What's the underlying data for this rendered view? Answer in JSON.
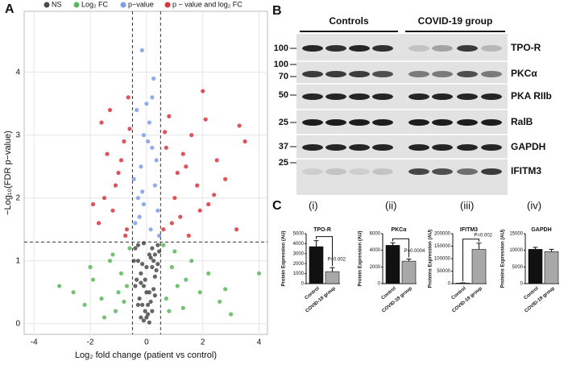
{
  "panel_labels": [
    "A",
    "B",
    "C"
  ],
  "blot": {
    "groups": [
      "Controls",
      "COVID-19 group"
    ],
    "rows": [
      {
        "markers": [
          "100"
        ],
        "protein": "TPO-R"
      },
      {
        "markers": [
          "100",
          "70"
        ],
        "protein": "PKCα"
      },
      {
        "markers": [
          "50"
        ],
        "protein": "PKA RIIb"
      },
      {
        "markers": [
          "25"
        ],
        "protein": "RalB"
      },
      {
        "markers": [
          "37"
        ],
        "protein": "GAPDH"
      },
      {
        "markers": [
          "25"
        ],
        "protein": "IFITM3"
      }
    ]
  },
  "chart_data": [
    {
      "type": "scatter",
      "x_label": "Log₂ fold change (patient vs control)",
      "y_label": "−Log₁₀(FDR p−value)",
      "xlim": [
        -4.35,
        4.3
      ],
      "ylim": [
        -0.17,
        4.97
      ],
      "xticks": [
        -4,
        -2,
        0,
        2,
        4
      ],
      "yticks": [
        0,
        1,
        2,
        3,
        4
      ],
      "grid": true,
      "vlines": [
        -0.5,
        0.5
      ],
      "hline": 1.3,
      "legend": "top",
      "series": [
        {
          "name": "NS",
          "color": "#4a4a4a",
          "x": [
            -0.4,
            -0.3,
            -0.2,
            -0.1,
            0,
            0.1,
            0.2,
            0.3,
            0.4,
            -0.35,
            -0.25,
            -0.15,
            -0.05,
            0.05,
            0.15,
            0.25,
            0.35,
            0.45,
            -0.45,
            -0.3,
            -0.2,
            -0.1,
            0.1,
            0.2,
            0.3,
            -0.4,
            -0.2,
            0,
            0.2,
            0.4,
            -0.1,
            0.1,
            -0.3,
            0.3,
            0,
            -0.15,
            0.15,
            -0.05,
            0.05,
            0.25
          ],
          "y": [
            1.2,
            1.0,
            0.8,
            0.6,
            0.1,
            0.5,
            0.9,
            1.1,
            1.25,
            0.7,
            0.4,
            0.3,
            0.2,
            0.15,
            0.35,
            0.55,
            0.85,
            1.15,
            1.0,
            0.3,
            0.1,
            0.05,
            0.02,
            0.2,
            0.45,
            0.6,
            0.65,
            0.9,
            1.2,
            0.95,
            1.28,
            1.1,
            1.25,
            0.75,
            0.5,
            0.95,
            1.05,
            0.7,
            0.3,
            1.0
          ]
        },
        {
          "name": "Log₂ FC",
          "color": "#5cb85c",
          "x": [
            -2.6,
            -2.2,
            -1.9,
            -1.6,
            -1.3,
            -1.1,
            -0.9,
            -0.7,
            -0.6,
            -1.5,
            -2.0,
            -1.0,
            -0.8,
            -3.1,
            -1.2,
            0.6,
            0.7,
            0.9,
            1.1,
            1.3,
            1.6,
            1.9,
            2.2,
            2.6,
            3.0,
            4.0,
            1.0,
            0.8,
            1.4,
            2.8
          ],
          "y": [
            0.5,
            0.3,
            0.7,
            0.4,
            1.0,
            0.2,
            0.8,
            0.6,
            1.2,
            0.1,
            0.9,
            0.5,
            0.35,
            0.6,
            1.1,
            1.25,
            0.4,
            0.9,
            0.6,
            0.25,
            1.0,
            0.5,
            0.8,
            0.35,
            0.15,
            0.8,
            1.15,
            0.2,
            0.7,
            0.55
          ]
        },
        {
          "name": "p−value",
          "color": "#7f9de8",
          "x": [
            -0.4,
            -0.3,
            -0.2,
            -0.1,
            0.0,
            0.1,
            0.2,
            0.3,
            0.4,
            -0.35,
            -0.15,
            0.15,
            0.35,
            -0.25,
            0.25,
            -0.16,
            0.45,
            -0.45,
            0.05,
            -0.1,
            0.2
          ],
          "y": [
            1.6,
            2.0,
            2.5,
            3.0,
            3.5,
            3.2,
            2.8,
            2.2,
            1.8,
            3.4,
            2.1,
            1.5,
            2.6,
            1.7,
            3.9,
            4.35,
            1.4,
            2.3,
            2.9,
            1.9,
            3.6
          ]
        },
        {
          "name": "p − value and log₂ FC",
          "color": "#d9363e",
          "x": [
            -1.7,
            -1.5,
            -1.2,
            -1.0,
            -0.8,
            -0.6,
            -0.7,
            -0.9,
            -1.3,
            -1.9,
            -1.1,
            -0.65,
            -1.4,
            -0.75,
            -1.6,
            0.6,
            0.7,
            0.8,
            1.0,
            1.2,
            1.4,
            1.6,
            1.8,
            2.0,
            2.2,
            2.5,
            2.8,
            3.2,
            3.5,
            1.1,
            0.9,
            1.5,
            2.1,
            2.4,
            1.3,
            0.65,
            3.3,
            1.9
          ],
          "y": [
            1.6,
            2.0,
            1.8,
            2.4,
            2.9,
            3.1,
            1.5,
            2.6,
            3.4,
            1.9,
            2.2,
            3.6,
            2.7,
            1.4,
            3.2,
            1.5,
            2.8,
            3.3,
            2.0,
            1.7,
            2.5,
            3.0,
            2.2,
            3.7,
            1.9,
            2.6,
            2.3,
            1.5,
            2.9,
            2.4,
            1.6,
            1.4,
            3.25,
            2.05,
            2.7,
            3.05,
            3.15,
            1.8
          ]
        }
      ]
    },
    {
      "type": "bar",
      "panel": "(i)",
      "title": "TPO-R",
      "y_label": "Protein Expression (AU)",
      "categories": [
        "Control",
        "COVID-19 group"
      ],
      "values": [
        3700,
        1200
      ],
      "errors": [
        600,
        400
      ],
      "colors": [
        "#111111",
        "#a8a8a8"
      ],
      "ylim": [
        0,
        5000
      ],
      "yticks": [
        0,
        1000,
        2000,
        3000,
        4000,
        5000
      ],
      "annotation": "P=0.002"
    },
    {
      "type": "bar",
      "panel": "(ii)",
      "title": "PKCα",
      "y_label": "Protein Expression (AU)",
      "categories": [
        "Control",
        "COVID-19 group"
      ],
      "values": [
        4600,
        2700
      ],
      "errors": [
        300,
        250
      ],
      "colors": [
        "#111111",
        "#a8a8a8"
      ],
      "ylim": [
        0,
        6000
      ],
      "yticks": [
        0,
        2000,
        4000,
        6000
      ],
      "annotation": "P=0.0004"
    },
    {
      "type": "bar",
      "panel": "(iii)",
      "title": "IFITM3",
      "y_label": "Proteins Expression (AU)",
      "categories": [
        "Control",
        "COVID-19 group"
      ],
      "values": [
        2000,
        137000
      ],
      "errors": [
        1000,
        25000
      ],
      "colors": [
        "#111111",
        "#a8a8a8"
      ],
      "ylim": [
        0,
        200000
      ],
      "yticks": [
        0,
        50000,
        100000,
        150000,
        200000
      ],
      "annotation": "P=0.002"
    },
    {
      "type": "bar",
      "panel": "(iv)",
      "title": "GAPDH",
      "y_label": "Proteins Expression (AU)",
      "categories": [
        "Control",
        "COVID-19 group"
      ],
      "values": [
        10300,
        9600
      ],
      "errors": [
        600,
        700
      ],
      "colors": [
        "#111111",
        "#a8a8a8"
      ],
      "ylim": [
        0,
        15000
      ],
      "yticks": [
        0,
        5000,
        10000,
        15000
      ]
    }
  ]
}
